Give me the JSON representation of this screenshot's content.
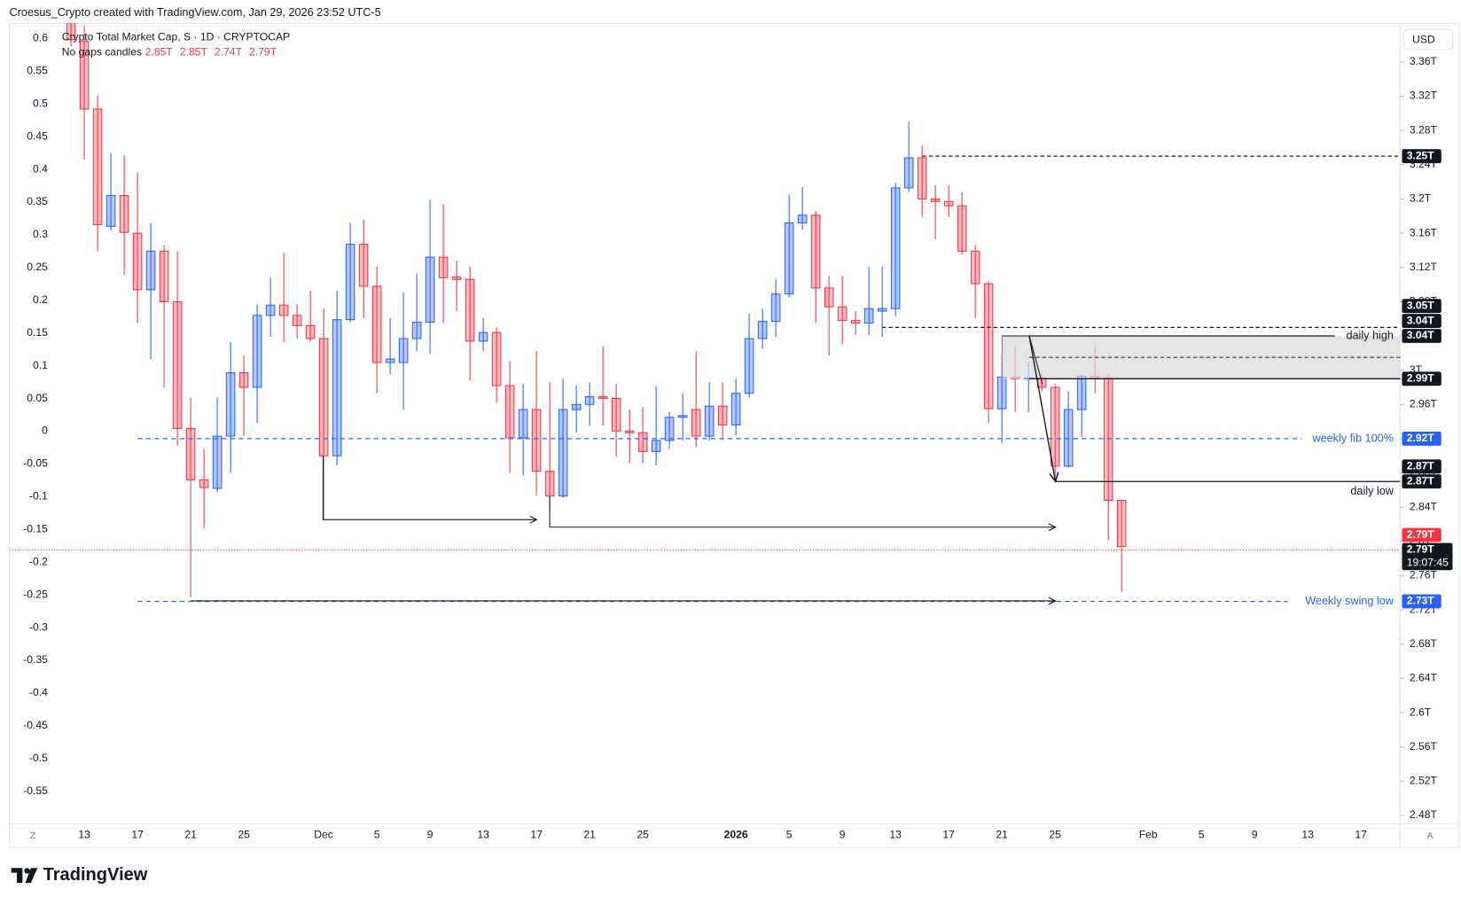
{
  "header": {
    "attribution": "Croesus_Crypto created with TradingView.com, Jan 29, 2026 23:52 UTC-5"
  },
  "chart_data": {
    "type": "candlestick",
    "title": "Crypto Total Market Cap, S · 1D · CRYPTOCAP",
    "subtitle": "No gaps candles",
    "ohlc_labels": [
      "2.85T",
      "2.85T",
      "2.74T",
      "2.79T"
    ],
    "currency": "USD",
    "scale_buttons": [
      "Z",
      "A"
    ],
    "up_color": "#2962ff",
    "down_color": "#f23645",
    "grid": false,
    "categories": [
      null,
      "13",
      null,
      null,
      null,
      "17",
      null,
      null,
      null,
      "21",
      null,
      null,
      null,
      "25",
      null,
      null,
      null,
      null,
      null,
      "Dec",
      null,
      null,
      null,
      "5",
      null,
      null,
      null,
      "9",
      null,
      null,
      null,
      "13",
      null,
      null,
      null,
      "17",
      null,
      null,
      null,
      "21",
      null,
      null,
      null,
      "25",
      null,
      null,
      null,
      null,
      null,
      null,
      "2026",
      null,
      null,
      null,
      "5",
      null,
      null,
      null,
      "9",
      null,
      null,
      null,
      "13",
      null,
      null,
      null,
      "17",
      null,
      null,
      null,
      "21",
      null,
      null,
      null,
      "25",
      null,
      null,
      null,
      null,
      null,
      null,
      "Feb",
      null,
      null,
      null,
      "5",
      null,
      null,
      null,
      "9",
      null,
      null,
      null,
      "13",
      null,
      null,
      null,
      "17",
      null
    ],
    "open": [
      3.405,
      3.384,
      3.305,
      3.168,
      3.204,
      3.16,
      3.094,
      3.139,
      3.08,
      2.932,
      2.872,
      2.862,
      2.923,
      2.997,
      2.98,
      3.064,
      3.076,
      3.064,
      3.052,
      3.037,
      2.9,
      3.059,
      3.147,
      3.098,
      3.009,
      3.009,
      3.037,
      3.056,
      3.132,
      3.109,
      3.106,
      3.034,
      3.044,
      2.982,
      2.921,
      2.954,
      2.882,
      2.853,
      2.954,
      2.96,
      2.969,
      2.967,
      2.929,
      2.927,
      2.905,
      2.918,
      2.945,
      2.954,
      2.923,
      2.958,
      2.936,
      2.973,
      3.037,
      3.057,
      3.089,
      3.172,
      3.181,
      3.096,
      3.074,
      3.058,
      3.055,
      3.069,
      3.072,
      3.213,
      3.248,
      3.2,
      3.197,
      3.192,
      3.139,
      3.101,
      2.955,
      2.992,
      2.99,
      2.991,
      2.98,
      2.888,
      2.954,
      2.993,
      2.991,
      2.848,
      null,
      null,
      null,
      null,
      null,
      null,
      null,
      null,
      null,
      null,
      null,
      null,
      null,
      null,
      null,
      null,
      null,
      null,
      null
    ],
    "high": [
      3.41,
      3.402,
      3.321,
      3.253,
      3.251,
      3.231,
      3.172,
      3.146,
      3.139,
      2.968,
      2.908,
      2.968,
      3.033,
      3.017,
      3.077,
      3.108,
      3.137,
      3.077,
      3.093,
      3.072,
      3.093,
      3.172,
      3.176,
      3.121,
      3.061,
      3.091,
      3.113,
      3.199,
      3.194,
      3.128,
      3.121,
      3.061,
      3.05,
      3.011,
      2.984,
      3.022,
      2.986,
      2.99,
      2.982,
      2.986,
      3.028,
      2.984,
      2.954,
      2.957,
      2.981,
      2.951,
      2.973,
      3.022,
      2.986,
      2.986,
      2.99,
      3.066,
      3.072,
      3.106,
      3.205,
      3.214,
      3.186,
      3.11,
      3.11,
      3.069,
      3.121,
      3.121,
      3.219,
      3.29,
      3.262,
      3.216,
      3.216,
      3.208,
      3.146,
      3.104,
      3.017,
      3.028,
      3.011,
      2.997,
      2.984,
      2.975,
      2.995,
      3.03,
      2.995,
      2.848,
      null,
      null,
      null,
      null,
      null,
      null,
      null,
      null,
      null,
      null,
      null,
      null,
      null,
      null,
      null,
      null,
      null,
      null,
      null
    ],
    "low": [
      3.378,
      3.246,
      3.139,
      3.163,
      3.111,
      3.055,
      3.013,
      2.98,
      2.912,
      2.735,
      2.815,
      2.858,
      2.88,
      2.923,
      2.938,
      3.039,
      3.033,
      3.037,
      3.033,
      2.826,
      2.889,
      3.056,
      3.061,
      2.973,
      2.995,
      2.954,
      3.022,
      3.019,
      3.055,
      3.069,
      2.988,
      3.022,
      2.962,
      2.88,
      2.877,
      2.853,
      2.836,
      2.851,
      2.927,
      2.935,
      2.935,
      2.899,
      2.891,
      2.891,
      2.889,
      2.908,
      2.918,
      2.91,
      2.918,
      2.918,
      2.924,
      2.968,
      3.025,
      3.039,
      3.085,
      3.164,
      3.055,
      3.017,
      3.03,
      3.041,
      3.041,
      3.039,
      3.063,
      3.208,
      3.179,
      3.153,
      3.179,
      3.135,
      3.061,
      2.938,
      2.915,
      2.951,
      2.951,
      2.975,
      2.875,
      2.886,
      2.922,
      2.973,
      2.801,
      2.741,
      null,
      null,
      null,
      null,
      null,
      null,
      null,
      null,
      null,
      null,
      null,
      null,
      null,
      null,
      null,
      null,
      null,
      null,
      null
    ],
    "close": [
      3.386,
      3.305,
      3.17,
      3.204,
      3.161,
      3.094,
      3.139,
      3.08,
      2.932,
      2.872,
      2.863,
      2.923,
      2.997,
      2.98,
      3.064,
      3.076,
      3.064,
      3.052,
      3.037,
      2.9,
      3.059,
      3.147,
      3.098,
      3.009,
      3.013,
      3.037,
      3.056,
      3.132,
      3.108,
      3.106,
      3.034,
      3.044,
      2.982,
      2.921,
      2.954,
      2.882,
      2.853,
      2.954,
      2.96,
      2.969,
      2.967,
      2.929,
      2.927,
      2.905,
      2.918,
      2.945,
      2.947,
      2.923,
      2.958,
      2.936,
      2.973,
      3.037,
      3.057,
      3.089,
      3.172,
      3.181,
      3.096,
      3.074,
      3.058,
      3.055,
      3.072,
      3.072,
      3.213,
      3.248,
      3.2,
      3.197,
      3.192,
      3.139,
      3.101,
      2.955,
      2.992,
      2.99,
      2.991,
      2.98,
      2.888,
      2.954,
      2.993,
      2.991,
      2.848,
      2.794,
      null,
      null,
      null,
      null,
      null,
      null,
      null,
      null,
      null,
      null,
      null,
      null,
      null,
      null,
      null,
      null,
      null,
      null,
      null
    ],
    "ylim": [
      2.47,
      3.405
    ],
    "yticks": [
      {
        "value": 3.36,
        "label": "3.36T"
      },
      {
        "value": 3.32,
        "label": "3.32T"
      },
      {
        "value": 3.28,
        "label": "3.28T"
      },
      {
        "value": 3.24,
        "label": "3.24T"
      },
      {
        "value": 3.2,
        "label": "3.2T"
      },
      {
        "value": 3.16,
        "label": "3.16T"
      },
      {
        "value": 3.12,
        "label": "3.12T"
      },
      {
        "value": 3.08,
        "label": "3.08T"
      },
      {
        "value": 3.04,
        "label": "3.04T"
      },
      {
        "value": 3,
        "label": "3T"
      },
      {
        "value": 2.96,
        "label": "2.96T"
      },
      {
        "value": 2.92,
        "label": "2.92T"
      },
      {
        "value": 2.88,
        "label": "2.88T"
      },
      {
        "value": 2.84,
        "label": "2.84T"
      },
      {
        "value": 2.8,
        "label": "2.8T"
      },
      {
        "value": 2.76,
        "label": "2.76T"
      },
      {
        "value": 2.72,
        "label": "2.72T"
      },
      {
        "value": 2.68,
        "label": "2.68T"
      },
      {
        "value": 2.64,
        "label": "2.64T"
      },
      {
        "value": 2.6,
        "label": "2.6T"
      },
      {
        "value": 2.56,
        "label": "2.56T"
      },
      {
        "value": 2.52,
        "label": "2.52T"
      },
      {
        "value": 2.48,
        "label": "2.48T"
      }
    ],
    "y2lim": [
      -0.6,
      0.623
    ],
    "y2ticks": [
      0.6,
      0.55,
      0.5,
      0.45,
      0.4,
      0.35,
      0.3,
      0.25,
      0.2,
      0.15,
      0.1,
      0.05,
      0,
      -0.05,
      -0.1,
      -0.15,
      -0.2,
      -0.25,
      -0.3,
      -0.35,
      -0.4,
      -0.45,
      -0.5,
      -0.55
    ],
    "levels": [
      {
        "value": 3.25,
        "label": "3.25T",
        "color": "#131722"
      },
      {
        "value": 3.05,
        "label": "3.05T",
        "color": "#131722"
      },
      {
        "value": 3.04,
        "label": "3.04T",
        "color": "#131722"
      },
      {
        "value": 3.04,
        "label": "3.04T",
        "color": "#131722",
        "text": "daily high"
      },
      {
        "value": 2.99,
        "label": "2.99T",
        "color": "#131722"
      },
      {
        "value": 2.92,
        "label": "2.92T",
        "color": "#2962ff",
        "text": "weekly fib 100%"
      },
      {
        "value": 2.87,
        "label": "2.87T",
        "color": "#131722"
      },
      {
        "value": 2.87,
        "label": "2.87T",
        "color": "#131722",
        "text": "daily low"
      },
      {
        "value": 2.79,
        "label": "2.79T",
        "color": "#f23645"
      },
      {
        "value": 2.79,
        "label": "2.79T",
        "color": "#131722",
        "countdown": "19:07:45"
      },
      {
        "value": 2.73,
        "label": "2.73T",
        "color": "#2962ff",
        "text": "Weekly swing low"
      }
    ]
  },
  "footer": {
    "brand": "TradingView"
  }
}
